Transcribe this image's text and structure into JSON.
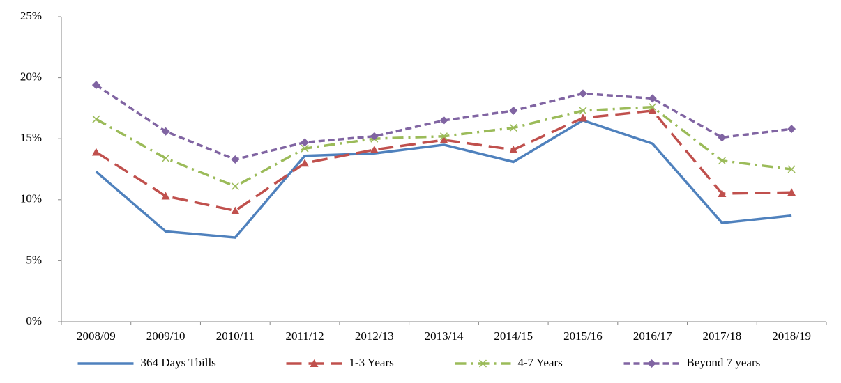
{
  "chart_data": {
    "type": "line",
    "categories": [
      "2008/09",
      "2009/10",
      "2010/11",
      "2011/12",
      "2012/13",
      "2013/14",
      "2014/15",
      "2015/16",
      "2016/17",
      "2017/18",
      "2018/19"
    ],
    "series": [
      {
        "name": "364 Days Tbills",
        "color": "#4f81bd",
        "dash": "solid",
        "marker": "none",
        "values": [
          12.3,
          7.4,
          6.9,
          13.6,
          13.8,
          14.5,
          13.1,
          16.5,
          14.6,
          8.1,
          8.7
        ]
      },
      {
        "name": "1-3 Years",
        "color": "#c0504d",
        "dash": "long-dash",
        "marker": "triangle",
        "values": [
          13.9,
          10.3,
          9.1,
          13.0,
          14.1,
          14.9,
          14.1,
          16.7,
          17.3,
          10.5,
          10.6
        ]
      },
      {
        "name": "4-7 Years",
        "color": "#9bbb59",
        "dash": "dash-dot",
        "marker": "x",
        "values": [
          16.6,
          13.4,
          11.1,
          14.2,
          15.0,
          15.2,
          15.9,
          17.3,
          17.6,
          13.2,
          12.5
        ]
      },
      {
        "name": "Beyond 7 years",
        "color": "#8064a2",
        "dash": "short-dash",
        "marker": "diamond",
        "values": [
          19.4,
          15.6,
          13.3,
          14.7,
          15.2,
          16.5,
          17.3,
          18.7,
          18.3,
          15.1,
          15.8
        ]
      }
    ],
    "ylim": [
      0,
      25
    ],
    "yticks": [
      {
        "value": 0,
        "label": "0%"
      },
      {
        "value": 5,
        "label": "5%"
      },
      {
        "value": 10,
        "label": "10%"
      },
      {
        "value": 15,
        "label": "15%"
      },
      {
        "value": 20,
        "label": "20%"
      },
      {
        "value": 25,
        "label": "25%"
      }
    ],
    "grid": false,
    "legend": "bottom"
  }
}
